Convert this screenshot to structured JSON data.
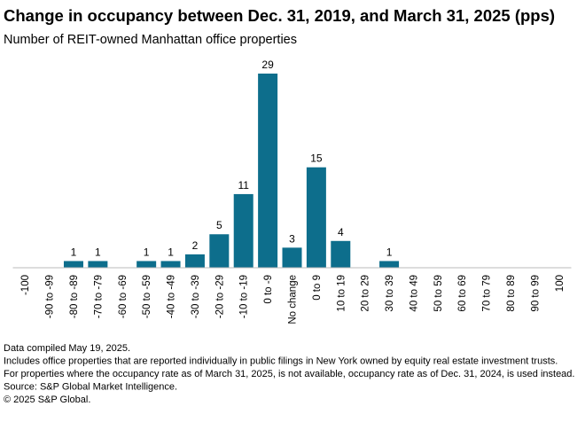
{
  "chart_data": {
    "type": "bar",
    "title": "Change in occupancy between Dec. 31, 2019, and March 31, 2025 (pps)",
    "subtitle": "Number of REIT-owned Manhattan office properties",
    "categories": [
      "-100",
      "-90 to -99",
      "-80 to -89",
      "-70 to -79",
      "-60 to -69",
      "-50 to -59",
      "-40 to -49",
      "-30 to -39",
      "-20 to -29",
      "-10 to -19",
      "0 to -9",
      "No change",
      "0 to 9",
      "10 to 19",
      "20 to 29",
      "30 to 39",
      "40 to 49",
      "50 to 59",
      "60 to 69",
      "70 to 79",
      "80 to 89",
      "90 to 99",
      "100"
    ],
    "values": [
      0,
      0,
      1,
      1,
      0,
      1,
      1,
      2,
      5,
      11,
      29,
      3,
      15,
      4,
      0,
      1,
      0,
      0,
      0,
      0,
      0,
      0,
      0
    ],
    "color": "#0d6e8c",
    "notes": [
      "Data compiled May 19, 2025.",
      "Includes office properties that are reported individually in public filings in New York owned by equity real estate investment trusts.",
      "For properties where the occupancy rate as of March 31, 2025, is not available, occupancy rate as of Dec. 31, 2024, is used instead.",
      "Source: S&P Global Market Intelligence.",
      "© 2025 S&P Global."
    ]
  }
}
